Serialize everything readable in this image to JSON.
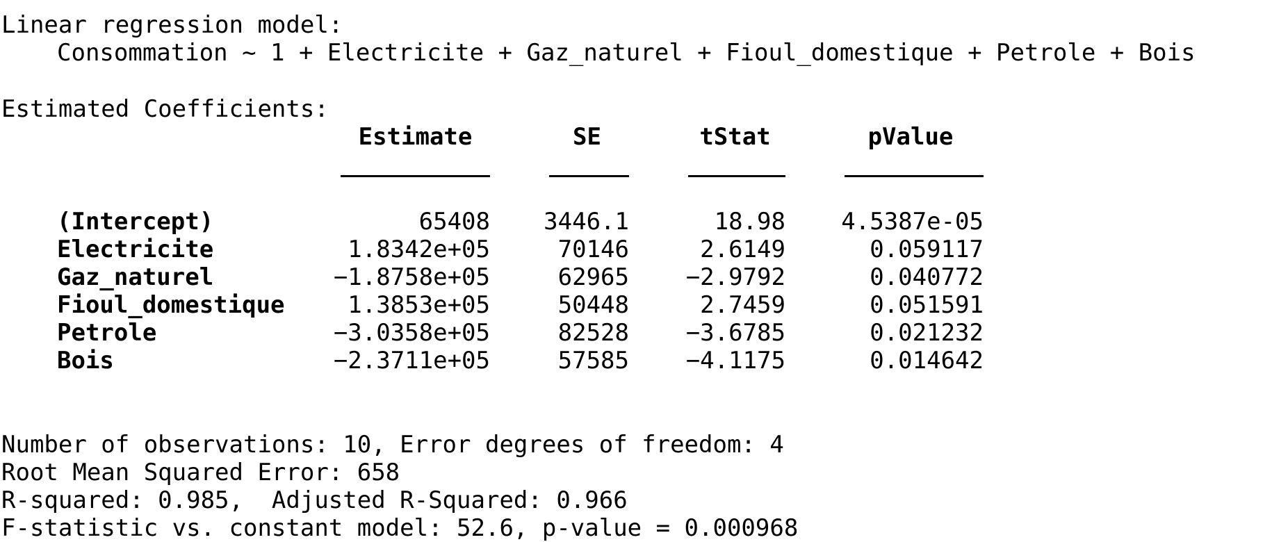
{
  "model": {
    "heading": "Linear regression model:",
    "formula": "Consommation ~ 1 + Electricite + Gaz_naturel + Fioul_domestique + Petrole + Bois"
  },
  "coefficients": {
    "heading": "Estimated Coefficients:",
    "columns": [
      "Estimate",
      "SE",
      "tStat",
      "pValue"
    ],
    "rows": [
      {
        "name": "(Intercept)",
        "estimate": "65408",
        "se": "3446.1",
        "tstat": "18.98",
        "pvalue": "4.5387e-05"
      },
      {
        "name": "Electricite",
        "estimate": "1.8342e+05",
        "se": "70146",
        "tstat": "2.6149",
        "pvalue": "0.059117"
      },
      {
        "name": "Gaz_naturel",
        "estimate": "−1.8758e+05",
        "se": "62965",
        "tstat": "−2.9792",
        "pvalue": "0.040772"
      },
      {
        "name": "Fioul_domestique",
        "estimate": "1.3853e+05",
        "se": "50448",
        "tstat": "2.7459",
        "pvalue": "0.051591"
      },
      {
        "name": "Petrole",
        "estimate": "−3.0358e+05",
        "se": "82528",
        "tstat": "−3.6785",
        "pvalue": "0.021232"
      },
      {
        "name": "Bois",
        "estimate": "−2.3711e+05",
        "se": "57585",
        "tstat": "−4.1175",
        "pvalue": "0.014642"
      }
    ]
  },
  "summary": [
    "Number of observations: 10, Error degrees of freedom: 4",
    "Root Mean Squared Error: 658",
    "R-squared: 0.985,  Adjusted R-Squared: 0.966",
    "F-statistic vs. constant model: 52.6, p-value = 0.000968"
  ]
}
